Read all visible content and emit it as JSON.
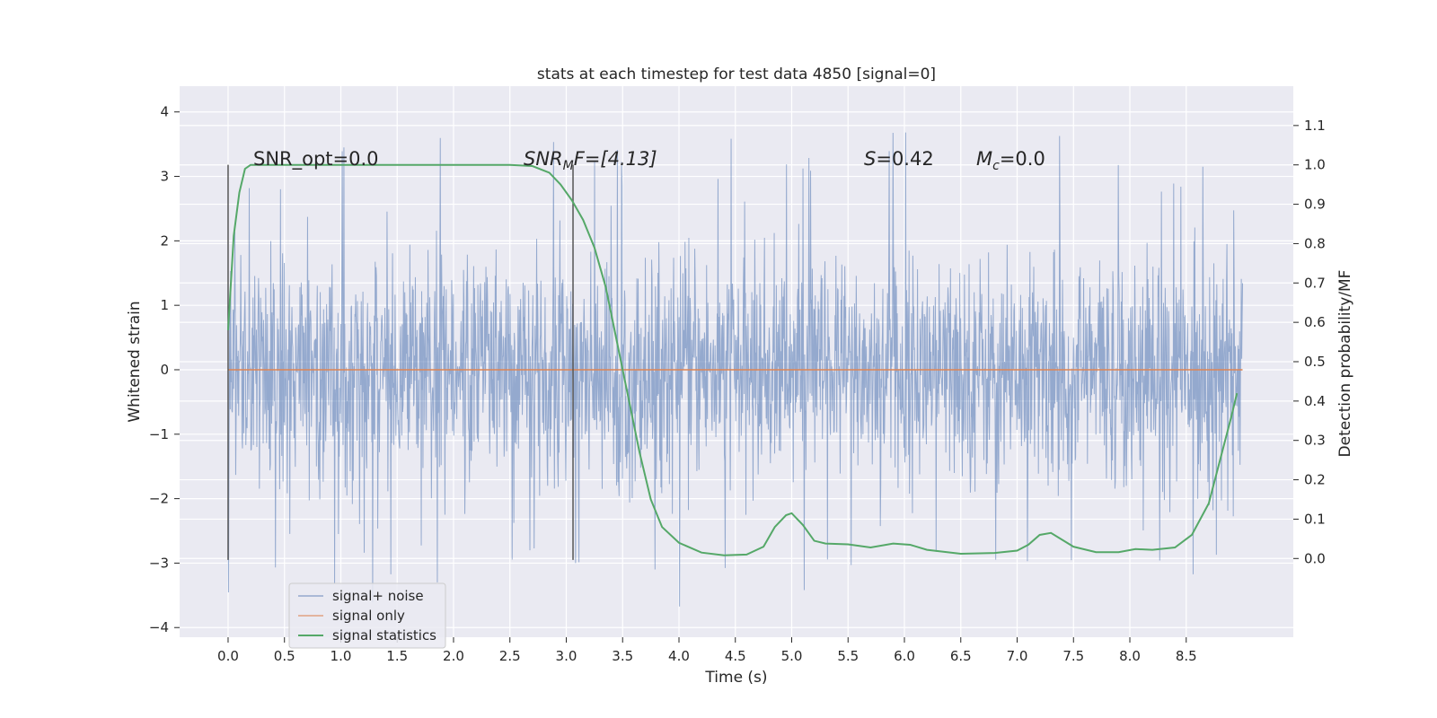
{
  "chart_data": {
    "type": "line",
    "title": "stats at each timestep for test data 4850 [signal=0]",
    "xlabel": "Time (s)",
    "ylabel_left": "Whitened strain",
    "ylabel_right": "Detection probability/MF",
    "xlim": [
      -0.43,
      9.45
    ],
    "ylim_left": [
      -4.15,
      4.4
    ],
    "ylim_right": [
      -0.2,
      1.2
    ],
    "x_ticks": [
      0.0,
      0.5,
      1.0,
      1.5,
      2.0,
      2.5,
      3.0,
      3.5,
      4.0,
      4.5,
      5.0,
      5.5,
      6.0,
      6.5,
      7.0,
      7.5,
      8.0,
      8.5
    ],
    "x_tick_labels": [
      "0.0",
      "0.5",
      "1.0",
      "1.5",
      "2.0",
      "2.5",
      "3.0",
      "3.5",
      "4.0",
      "4.5",
      "5.0",
      "5.5",
      "6.0",
      "6.5",
      "7.0",
      "7.5",
      "8.0",
      "8.5"
    ],
    "y_left_ticks": [
      4,
      3,
      2,
      1,
      0,
      -1,
      -2,
      -3,
      -4
    ],
    "y_left_tick_labels": [
      "4",
      "3",
      "2",
      "1",
      "0",
      "−1",
      "−2",
      "−3",
      "−4"
    ],
    "y_right_ticks": [
      1.1,
      1.0,
      0.9,
      0.8,
      0.7,
      0.6,
      0.5,
      0.4,
      0.3,
      0.2,
      0.1,
      0.0
    ],
    "y_right_tick_labels": [
      "1.1",
      "1.0",
      "0.9",
      "0.8",
      "0.7",
      "0.6",
      "0.5",
      "0.4",
      "0.3",
      "0.2",
      "0.1",
      "0.0"
    ],
    "grid": true,
    "legend_position": "lower-left",
    "series": [
      {
        "name": "signal+ noise",
        "axis": "left",
        "color": "#4c72b0",
        "note": "dense whitened noise samples from 0.0 to 9.0 s",
        "time_range": [
          0.0,
          9.0
        ],
        "typical_range": [
          -1.8,
          1.9
        ],
        "peak_max": 4.03,
        "peak_min": -3.8
      },
      {
        "name": "signal only",
        "axis": "left",
        "color": "#dd8452",
        "x": [
          0.0,
          9.0
        ],
        "y": [
          0.0,
          0.0
        ]
      },
      {
        "name": "signal statistics",
        "axis": "right",
        "color": "#55a868",
        "x": [
          0.0,
          0.05,
          0.1,
          0.15,
          0.2,
          0.3,
          0.5,
          1.0,
          1.5,
          2.0,
          2.5,
          2.7,
          2.85,
          2.95,
          3.05,
          3.15,
          3.25,
          3.35,
          3.45,
          3.55,
          3.65,
          3.75,
          3.85,
          4.0,
          4.2,
          4.4,
          4.6,
          4.75,
          4.85,
          4.95,
          5.0,
          5.1,
          5.2,
          5.3,
          5.5,
          5.7,
          5.9,
          6.05,
          6.2,
          6.5,
          6.8,
          7.0,
          7.1,
          7.2,
          7.3,
          7.5,
          7.7,
          7.9,
          8.05,
          8.2,
          8.4,
          8.55,
          8.7,
          8.8,
          8.9,
          8.95
        ],
        "y": [
          0.58,
          0.82,
          0.93,
          0.99,
          1.0,
          1.0,
          1.0,
          1.0,
          1.0,
          1.0,
          1.0,
          0.997,
          0.98,
          0.95,
          0.91,
          0.86,
          0.79,
          0.69,
          0.55,
          0.41,
          0.27,
          0.15,
          0.08,
          0.04,
          0.015,
          0.008,
          0.01,
          0.03,
          0.08,
          0.11,
          0.115,
          0.085,
          0.045,
          0.038,
          0.036,
          0.028,
          0.038,
          0.035,
          0.022,
          0.012,
          0.014,
          0.02,
          0.035,
          0.06,
          0.065,
          0.03,
          0.016,
          0.016,
          0.024,
          0.022,
          0.028,
          0.06,
          0.14,
          0.25,
          0.36,
          0.42
        ]
      }
    ],
    "vertical_lines": [
      {
        "x": 0.0,
        "ymin": -2.95,
        "ymax": 3.18,
        "color": "#555555"
      },
      {
        "x": 3.06,
        "ymin": -2.95,
        "ymax": 3.18,
        "color": "#555555"
      }
    ],
    "annotations": {
      "snr_opt": "SNR_opt=0.0",
      "snr_mf_name": "SNR",
      "snr_mf_sub": "M",
      "snr_mf_rest": "F=[4.13]",
      "s_name": "S",
      "s_rest": "=0.42",
      "mc_name": "M",
      "mc_sub": "c",
      "mc_rest": "=0.0"
    }
  }
}
